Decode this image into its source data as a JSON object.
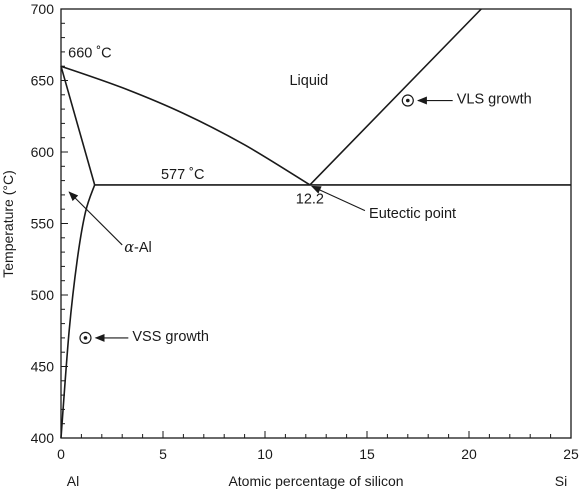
{
  "chart_data": {
    "type": "line",
    "xlabel": "Atomic percentage of silicon",
    "ylabel": "Temperature (°C)",
    "xlim": [
      0,
      25
    ],
    "ylim": [
      400,
      700
    ],
    "x_ticks": [
      0,
      5,
      10,
      15,
      20,
      25
    ],
    "y_ticks": [
      400,
      450,
      500,
      550,
      600,
      650,
      700
    ],
    "x_minor_step": 1,
    "y_minor_step": 10,
    "grid": false,
    "endpoint_labels": {
      "left": "Al",
      "right": "Si"
    },
    "series": [
      {
        "x": [
          0,
          3,
          6,
          9,
          12.2
        ],
        "y": [
          660,
          645,
          627,
          605,
          577
        ]
      },
      {
        "x": [
          12.2,
          20.6
        ],
        "y": [
          577,
          700
        ]
      },
      {
        "x": [
          1.65,
          25
        ],
        "y": [
          577,
          577
        ]
      },
      {
        "x": [
          0,
          1.65
        ],
        "y": [
          660,
          577
        ]
      },
      {
        "x": [
          0,
          0.4,
          0.8,
          1.2,
          1.65
        ],
        "y": [
          400,
          475,
          525,
          558,
          577
        ]
      }
    ],
    "annotations": [
      {
        "id": "t660",
        "text": "660 ˚C",
        "x": 0.35,
        "y": 666
      },
      {
        "id": "t577",
        "text": "577 ˚C",
        "x": 4.9,
        "y": 581
      },
      {
        "id": "liquid",
        "text": "Liquid",
        "x": 11.2,
        "y": 647
      },
      {
        "id": "eut_comp",
        "text": "12.2",
        "x": 12.2,
        "y": 564
      },
      {
        "id": "eutectic",
        "text": "Eutectic point",
        "x": 15.1,
        "y": 554,
        "arrow_to": [
          12.3,
          576
        ],
        "arrow_from": [
          14.9,
          559
        ]
      },
      {
        "id": "alpha",
        "text": "-Al",
        "prefix": "α",
        "x": 3.1,
        "y": 530,
        "arrow_to": [
          0.4,
          572
        ],
        "arrow_from": [
          3.0,
          535
        ]
      },
      {
        "id": "vls",
        "text": "VLS growth",
        "x": 19.4,
        "y": 634,
        "marker": [
          17.0,
          636
        ],
        "arrow_to": [
          17.5,
          636
        ],
        "arrow_from": [
          19.2,
          636
        ]
      },
      {
        "id": "vss",
        "text": "VSS growth",
        "x": 3.5,
        "y": 468,
        "marker": [
          1.2,
          470
        ],
        "arrow_to": [
          1.7,
          470
        ],
        "arrow_from": [
          3.3,
          470
        ]
      }
    ]
  }
}
